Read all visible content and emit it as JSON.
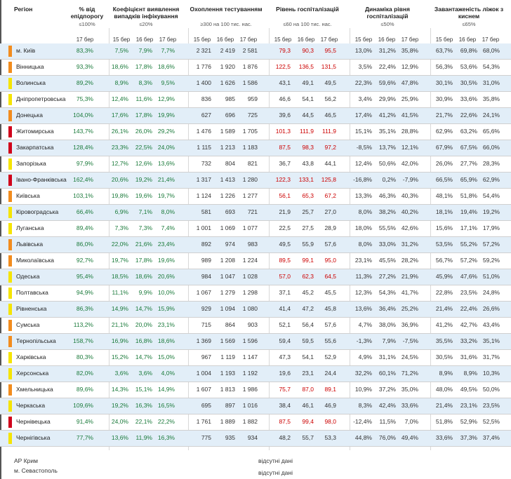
{
  "headers": {
    "region": "Регіон",
    "pct_threshold": "% від епідпорогу",
    "pct_threshold_sub": "≤100%",
    "detect_coef": "Коефіцієнт виявлення випадків інфікування",
    "detect_coef_sub": "≤20%",
    "testing": "Охоплення тестуванням",
    "testing_sub": "≥300 на 100 тис. нас.",
    "hosp": "Рівень госпіталізацій",
    "hosp_sub": "≤60 на 100 тис. нас.",
    "dyn": "Динаміка рівня госпіталізацій",
    "dyn_sub": "≤50%",
    "beds": "Завантаженість ліжок з киснем",
    "beds_sub": "≤65%"
  },
  "dates": {
    "d15": "15 бер",
    "d16": "16 бер",
    "d17": "17 бер"
  },
  "colors": {
    "green_text": "#1a7a3a",
    "red_text": "#cc0000",
    "orange": "#f28c1e",
    "yellow": "#f5e400",
    "red": "#d0021b",
    "row_band": "#e2eef8"
  },
  "rows": [
    {
      "name": "м. Київ",
      "flag": "orange",
      "pct": "83,3%",
      "c15": "7,5%",
      "c16": "7,9%",
      "c17": "7,7%",
      "t15": "2 321",
      "t16": "2 419",
      "t17": "2 581",
      "h15": "79,3",
      "h16": "90,3",
      "h17": "95,5",
      "hred": true,
      "d15": "13,0%",
      "d16": "31,2%",
      "d17": "35,8%",
      "b15": "63,7%",
      "b16": "69,8%",
      "b17": "68,0%"
    },
    {
      "name": "Вінницька",
      "flag": "orange",
      "pct": "93,3%",
      "c15": "18,6%",
      "c16": "17,8%",
      "c17": "18,6%",
      "t15": "1 776",
      "t16": "1 920",
      "t17": "1 876",
      "h15": "122,5",
      "h16": "136,5",
      "h17": "131,5",
      "hred": true,
      "d15": "3,5%",
      "d16": "22,4%",
      "d17": "12,9%",
      "b15": "56,3%",
      "b16": "53,6%",
      "b17": "54,3%"
    },
    {
      "name": "Волинська",
      "flag": "yellow",
      "pct": "89,2%",
      "c15": "8,9%",
      "c16": "8,3%",
      "c17": "9,5%",
      "t15": "1 400",
      "t16": "1 626",
      "t17": "1 586",
      "h15": "43,1",
      "h16": "49,1",
      "h17": "49,5",
      "hred": false,
      "d15": "22,3%",
      "d16": "59,6%",
      "d17": "47,8%",
      "b15": "30,1%",
      "b16": "30,5%",
      "b17": "31,0%"
    },
    {
      "name": "Дніпропетровська",
      "flag": "yellow",
      "pct": "75,3%",
      "c15": "12,4%",
      "c16": "11,6%",
      "c17": "12,9%",
      "t15": "836",
      "t16": "985",
      "t17": "959",
      "h15": "46,6",
      "h16": "54,1",
      "h17": "56,2",
      "hred": false,
      "d15": "3,4%",
      "d16": "29,9%",
      "d17": "25,9%",
      "b15": "30,9%",
      "b16": "33,6%",
      "b17": "35,8%"
    },
    {
      "name": "Донецька",
      "flag": "orange",
      "pct": "104,0%",
      "c15": "17,6%",
      "c16": "17,8%",
      "c17": "19,9%",
      "t15": "627",
      "t16": "696",
      "t17": "725",
      "h15": "39,6",
      "h16": "44,5",
      "h17": "46,5",
      "hred": false,
      "d15": "17,4%",
      "d16": "41,2%",
      "d17": "41,5%",
      "b15": "21,7%",
      "b16": "22,6%",
      "b17": "24,1%"
    },
    {
      "name": "Житомирська",
      "flag": "red",
      "pct": "143,7%",
      "c15": "26,1%",
      "c16": "26,0%",
      "c17": "29,2%",
      "t15": "1 476",
      "t16": "1 589",
      "t17": "1 705",
      "h15": "101,3",
      "h16": "111,9",
      "h17": "111,9",
      "hred": true,
      "d15": "15,1%",
      "d16": "35,1%",
      "d17": "28,8%",
      "b15": "62,9%",
      "b16": "63,2%",
      "b17": "65,6%"
    },
    {
      "name": "Закарпатська",
      "flag": "red",
      "pct": "128,4%",
      "c15": "23,3%",
      "c16": "22,5%",
      "c17": "24,0%",
      "t15": "1 115",
      "t16": "1 213",
      "t17": "1 183",
      "h15": "87,5",
      "h16": "98,3",
      "h17": "97,2",
      "hred": true,
      "d15": "-8,5%",
      "d16": "13,7%",
      "d17": "12,1%",
      "b15": "67,9%",
      "b16": "67,5%",
      "b17": "66,0%"
    },
    {
      "name": "Запорізька",
      "flag": "yellow",
      "pct": "97,9%",
      "c15": "12,7%",
      "c16": "12,6%",
      "c17": "13,6%",
      "t15": "732",
      "t16": "804",
      "t17": "821",
      "h15": "36,7",
      "h16": "43,8",
      "h17": "44,1",
      "hred": false,
      "d15": "12,4%",
      "d16": "50,6%",
      "d17": "42,0%",
      "b15": "26,0%",
      "b16": "27,7%",
      "b17": "28,3%"
    },
    {
      "name": "Івано-Франківська",
      "flag": "red",
      "pct": "162,4%",
      "c15": "20,6%",
      "c16": "19,2%",
      "c17": "21,4%",
      "t15": "1 317",
      "t16": "1 413",
      "t17": "1 280",
      "h15": "122,3",
      "h16": "133,1",
      "h17": "125,8",
      "hred": true,
      "d15": "-16,8%",
      "d16": "0,2%",
      "d17": "-7,9%",
      "b15": "66,5%",
      "b16": "65,9%",
      "b17": "62,9%"
    },
    {
      "name": "Київська",
      "flag": "orange",
      "pct": "103,1%",
      "c15": "19,8%",
      "c16": "19,6%",
      "c17": "19,7%",
      "t15": "1 124",
      "t16": "1 226",
      "t17": "1 277",
      "h15": "56,1",
      "h16": "65,3",
      "h17": "67,2",
      "hred": true,
      "d15": "13,3%",
      "d16": "46,3%",
      "d17": "40,3%",
      "b15": "48,1%",
      "b16": "51,8%",
      "b17": "54,4%"
    },
    {
      "name": "Кіровоградська",
      "flag": "yellow",
      "pct": "66,4%",
      "c15": "6,9%",
      "c16": "7,1%",
      "c17": "8,0%",
      "t15": "581",
      "t16": "693",
      "t17": "721",
      "h15": "21,9",
      "h16": "25,7",
      "h17": "27,0",
      "hred": false,
      "d15": "8,0%",
      "d16": "38,2%",
      "d17": "40,2%",
      "b15": "18,1%",
      "b16": "19,4%",
      "b17": "19,2%"
    },
    {
      "name": "Луганська",
      "flag": "yellow",
      "pct": "89,4%",
      "c15": "7,3%",
      "c16": "7,3%",
      "c17": "7,4%",
      "t15": "1 001",
      "t16": "1 069",
      "t17": "1 077",
      "h15": "22,5",
      "h16": "27,5",
      "h17": "28,9",
      "hred": false,
      "d15": "18,0%",
      "d16": "55,5%",
      "d17": "42,6%",
      "b15": "15,6%",
      "b16": "17,1%",
      "b17": "17,9%"
    },
    {
      "name": "Львівська",
      "flag": "orange",
      "pct": "86,0%",
      "c15": "22,0%",
      "c16": "21,6%",
      "c17": "23,4%",
      "t15": "892",
      "t16": "974",
      "t17": "983",
      "h15": "49,5",
      "h16": "55,9",
      "h17": "57,6",
      "hred": false,
      "d15": "8,0%",
      "d16": "33,0%",
      "d17": "31,2%",
      "b15": "53,5%",
      "b16": "55,2%",
      "b17": "57,2%"
    },
    {
      "name": "Миколаївська",
      "flag": "orange",
      "pct": "92,7%",
      "c15": "19,7%",
      "c16": "17,8%",
      "c17": "19,6%",
      "t15": "989",
      "t16": "1 208",
      "t17": "1 224",
      "h15": "89,5",
      "h16": "99,1",
      "h17": "95,0",
      "hred": true,
      "d15": "23,1%",
      "d16": "45,5%",
      "d17": "28,2%",
      "b15": "56,7%",
      "b16": "57,2%",
      "b17": "59,2%"
    },
    {
      "name": "Одеська",
      "flag": "yellow",
      "pct": "95,4%",
      "c15": "18,5%",
      "c16": "18,6%",
      "c17": "20,6%",
      "t15": "984",
      "t16": "1 047",
      "t17": "1 028",
      "h15": "57,0",
      "h16": "62,3",
      "h17": "64,5",
      "hred": true,
      "d15": "11,3%",
      "d16": "27,2%",
      "d17": "21,9%",
      "b15": "45,9%",
      "b16": "47,6%",
      "b17": "51,0%"
    },
    {
      "name": "Полтавська",
      "flag": "yellow",
      "pct": "94,9%",
      "c15": "11,1%",
      "c16": "9,9%",
      "c17": "10,0%",
      "t15": "1 067",
      "t16": "1 279",
      "t17": "1 298",
      "h15": "37,1",
      "h16": "45,2",
      "h17": "45,5",
      "hred": false,
      "d15": "12,3%",
      "d16": "54,3%",
      "d17": "41,7%",
      "b15": "22,8%",
      "b16": "23,5%",
      "b17": "24,8%"
    },
    {
      "name": "Рівненська",
      "flag": "yellow",
      "pct": "86,3%",
      "c15": "14,9%",
      "c16": "14,7%",
      "c17": "15,9%",
      "t15": "929",
      "t16": "1 094",
      "t17": "1 080",
      "h15": "41,4",
      "h16": "47,2",
      "h17": "45,8",
      "hred": false,
      "d15": "13,6%",
      "d16": "36,4%",
      "d17": "25,2%",
      "b15": "21,4%",
      "b16": "22,4%",
      "b17": "26,6%"
    },
    {
      "name": "Сумська",
      "flag": "orange",
      "pct": "113,2%",
      "c15": "21,1%",
      "c16": "20,0%",
      "c17": "23,1%",
      "t15": "715",
      "t16": "864",
      "t17": "903",
      "h15": "52,1",
      "h16": "56,4",
      "h17": "57,6",
      "hred": false,
      "d15": "4,7%",
      "d16": "38,0%",
      "d17": "36,9%",
      "b15": "41,2%",
      "b16": "42,7%",
      "b17": "43,4%"
    },
    {
      "name": "Тернопільська",
      "flag": "orange",
      "pct": "158,7%",
      "c15": "16,9%",
      "c16": "16,8%",
      "c17": "18,6%",
      "t15": "1 369",
      "t16": "1 569",
      "t17": "1 596",
      "h15": "59,4",
      "h16": "59,5",
      "h17": "55,6",
      "hred": false,
      "d15": "-1,3%",
      "d16": "7,9%",
      "d17": "-7,5%",
      "b15": "35,5%",
      "b16": "33,2%",
      "b17": "35,1%"
    },
    {
      "name": "Харківська",
      "flag": "yellow",
      "pct": "80,3%",
      "c15": "15,2%",
      "c16": "14,7%",
      "c17": "15,0%",
      "t15": "967",
      "t16": "1 119",
      "t17": "1 147",
      "h15": "47,3",
      "h16": "54,1",
      "h17": "52,9",
      "hred": false,
      "d15": "4,9%",
      "d16": "31,1%",
      "d17": "24,5%",
      "b15": "30,5%",
      "b16": "31,6%",
      "b17": "31,7%"
    },
    {
      "name": "Херсонська",
      "flag": "yellow",
      "pct": "82,0%",
      "c15": "3,6%",
      "c16": "3,6%",
      "c17": "4,0%",
      "t15": "1 004",
      "t16": "1 193",
      "t17": "1 192",
      "h15": "19,6",
      "h16": "23,1",
      "h17": "24,4",
      "hred": false,
      "d15": "32,2%",
      "d16": "60,1%",
      "d17": "71,2%",
      "b15": "8,9%",
      "b16": "8,9%",
      "b17": "10,3%"
    },
    {
      "name": "Хмельницька",
      "flag": "orange",
      "pct": "89,6%",
      "c15": "14,3%",
      "c16": "15,1%",
      "c17": "14,9%",
      "t15": "1 607",
      "t16": "1 813",
      "t17": "1 986",
      "h15": "75,7",
      "h16": "87,0",
      "h17": "89,1",
      "hred": true,
      "d15": "10,9%",
      "d16": "37,2%",
      "d17": "35,0%",
      "b15": "48,0%",
      "b16": "49,5%",
      "b17": "50,0%"
    },
    {
      "name": "Черкаська",
      "flag": "yellow",
      "pct": "109,6%",
      "c15": "19,2%",
      "c16": "16,3%",
      "c17": "16,5%",
      "t15": "695",
      "t16": "897",
      "t17": "1 016",
      "h15": "38,4",
      "h16": "46,1",
      "h17": "46,9",
      "hred": false,
      "d15": "8,3%",
      "d16": "42,4%",
      "d17": "33,6%",
      "b15": "21,4%",
      "b16": "23,1%",
      "b17": "23,5%"
    },
    {
      "name": "Чернівецька",
      "flag": "red",
      "pct": "91,4%",
      "c15": "24,0%",
      "c16": "22,1%",
      "c17": "22,2%",
      "t15": "1 761",
      "t16": "1 889",
      "t17": "1 882",
      "h15": "87,5",
      "h16": "99,4",
      "h17": "98,0",
      "hred": true,
      "d15": "-12,4%",
      "d16": "11,5%",
      "d17": "7,0%",
      "b15": "51,8%",
      "b16": "52,9%",
      "b17": "52,5%"
    },
    {
      "name": "Чернігівська",
      "flag": "yellow",
      "pct": "77,7%",
      "c15": "13,6%",
      "c16": "11,9%",
      "c17": "16,3%",
      "t15": "775",
      "t16": "935",
      "t17": "934",
      "h15": "48,2",
      "h16": "55,7",
      "h17": "53,3",
      "hred": false,
      "d15": "44,8%",
      "d16": "76,0%",
      "d17": "49,4%",
      "b15": "33,6%",
      "b16": "37,3%",
      "b17": "37,4%"
    }
  ],
  "footer": [
    {
      "name": "АР Крим",
      "note": "відсутні дані"
    },
    {
      "name": "м. Севастополь",
      "note": "відсутні дані"
    }
  ]
}
